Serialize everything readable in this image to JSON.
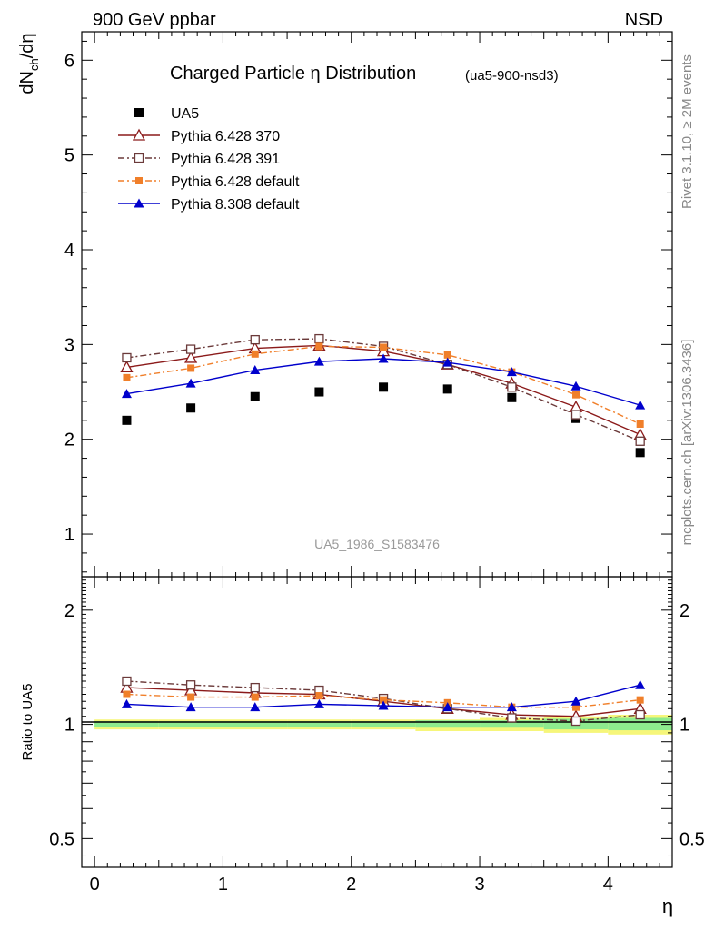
{
  "header": {
    "left": "900 GeV ppbar",
    "right": "NSD"
  },
  "side_texts": {
    "rivet": "Rivet 3.1.10, ≥ 2M events",
    "mcplots": "mcplots.cern.ch [arXiv:1306.3436]"
  },
  "chart_data": {
    "type": "line",
    "title": "Charged Particle η Distribution",
    "subtitle": "(ua5-900-nsd3)",
    "watermark": "UA5_1986_S1583476",
    "xlabel": "η",
    "xlim": [
      -0.1,
      4.5
    ],
    "x_ticks": [
      "0",
      "1",
      "2",
      "3",
      "4"
    ],
    "x": [
      0.25,
      0.75,
      1.25,
      1.75,
      2.25,
      2.75,
      3.25,
      3.75,
      4.25
    ],
    "top": {
      "ylabel": "dN_ch/dη",
      "ylim": [
        0.55,
        6.3
      ],
      "y_ticks": [
        "1",
        "2",
        "3",
        "4",
        "5",
        "6"
      ],
      "series": [
        {
          "name": "UA5",
          "color": "#000000",
          "marker": "filled-square",
          "line": "none",
          "values": [
            2.2,
            2.33,
            2.45,
            2.5,
            2.55,
            2.53,
            2.44,
            2.22,
            1.86
          ]
        },
        {
          "name": "Pythia 6.428 370",
          "color": "#8b1a1a",
          "marker": "open-triangle",
          "line": "solid",
          "values": [
            2.76,
            2.86,
            2.96,
            2.99,
            2.93,
            2.79,
            2.59,
            2.34,
            2.05
          ]
        },
        {
          "name": "Pythia 6.428 391",
          "color": "#6b3a3a",
          "marker": "open-square",
          "line": "dashdot",
          "values": [
            2.86,
            2.95,
            3.05,
            3.06,
            2.98,
            2.79,
            2.55,
            2.26,
            1.98
          ]
        },
        {
          "name": "Pythia 6.428 default",
          "color": "#f07f2a",
          "marker": "filled-square-small",
          "line": "dashdot",
          "values": [
            2.65,
            2.75,
            2.9,
            2.98,
            2.97,
            2.89,
            2.71,
            2.47,
            2.16
          ]
        },
        {
          "name": "Pythia 8.308 default",
          "color": "#0000cc",
          "marker": "filled-triangle",
          "line": "solid",
          "values": [
            2.48,
            2.59,
            2.73,
            2.82,
            2.85,
            2.81,
            2.71,
            2.56,
            2.36
          ]
        }
      ]
    },
    "ratio": {
      "ylabel": "Ratio to UA5",
      "scale": "log",
      "ylim": [
        0.42,
        2.45
      ],
      "y_ticks": [
        "0.5",
        "1",
        "2"
      ],
      "band_yellow": [
        [
          0.97,
          1.03
        ],
        [
          0.97,
          1.03
        ],
        [
          0.97,
          1.03
        ],
        [
          0.97,
          1.03
        ],
        [
          0.97,
          1.03
        ],
        [
          0.96,
          1.03
        ],
        [
          0.96,
          1.04
        ],
        [
          0.95,
          1.05
        ],
        [
          0.94,
          1.06
        ]
      ],
      "band_green": [
        [
          0.985,
          1.02
        ],
        [
          0.985,
          1.02
        ],
        [
          0.985,
          1.02
        ],
        [
          0.985,
          1.02
        ],
        [
          0.985,
          1.02
        ],
        [
          0.98,
          1.025
        ],
        [
          0.98,
          1.025
        ],
        [
          0.97,
          1.035
        ],
        [
          0.965,
          1.04
        ]
      ],
      "series": [
        {
          "name": "Pythia 6.428 370",
          "values": [
            1.25,
            1.23,
            1.21,
            1.2,
            1.15,
            1.1,
            1.06,
            1.05,
            1.1
          ]
        },
        {
          "name": "Pythia 6.428 391",
          "values": [
            1.3,
            1.27,
            1.25,
            1.23,
            1.17,
            1.1,
            1.04,
            1.02,
            1.06
          ]
        },
        {
          "name": "Pythia 6.428 default",
          "values": [
            1.2,
            1.18,
            1.18,
            1.19,
            1.16,
            1.14,
            1.11,
            1.11,
            1.16
          ]
        },
        {
          "name": "Pythia 8.308 default",
          "values": [
            1.13,
            1.11,
            1.11,
            1.13,
            1.12,
            1.11,
            1.11,
            1.15,
            1.27
          ]
        }
      ]
    }
  }
}
